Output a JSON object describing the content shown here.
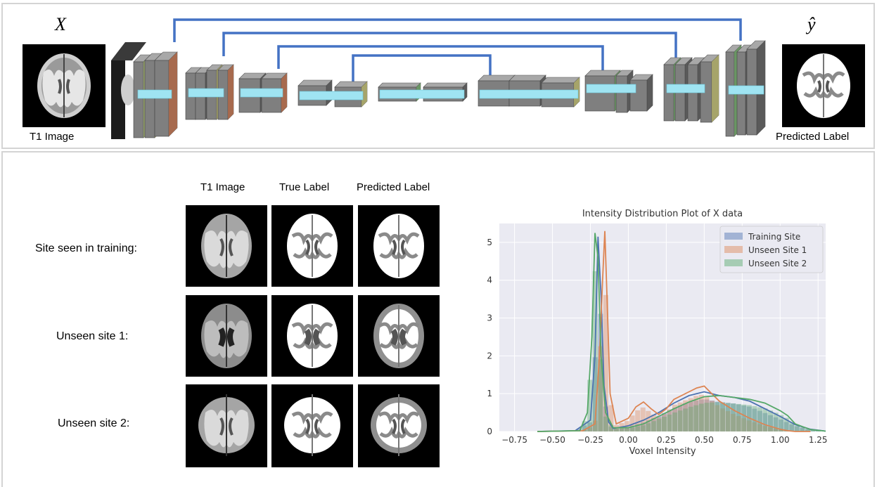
{
  "top": {
    "input_symbol": "X",
    "output_symbol": "ŷ",
    "input_caption": "T1 Image",
    "output_caption": "Predicted Label"
  },
  "grid": {
    "columns": [
      "T1 Image",
      "True Label",
      "Predicted Label"
    ],
    "rows": [
      "Site seen in training:",
      "Unseen site 1:",
      "Unseen site 2:"
    ]
  },
  "colors": {
    "skip_connection": "#4472c4",
    "block_gray": "#7f7f7f",
    "feature_cyan": "#9fe4f2",
    "training_site": "#4c72b0",
    "unseen_site_1": "#dd8452",
    "unseen_site_2": "#55a868",
    "plot_bg": "#eaeaf2"
  },
  "icons": [
    "brain-mri-icon",
    "brain-label-icon"
  ],
  "chart_data": {
    "type": "histogram",
    "title": "Intensity Distribution Plot of X data",
    "xlabel": "Voxel Intensity",
    "ylabel": "",
    "xlim": [
      -0.85,
      1.3
    ],
    "ylim": [
      0,
      5.5
    ],
    "x_ticks": [
      "−0.75",
      "−0.50",
      "−0.25",
      "0.00",
      "0.25",
      "0.50",
      "0.75",
      "1.00",
      "1.25"
    ],
    "y_ticks": [
      "0",
      "1",
      "2",
      "3",
      "4",
      "5"
    ],
    "grid": true,
    "legend_position": "top-right",
    "series": [
      {
        "name": "Training Site",
        "kde_x": [
          -0.6,
          -0.35,
          -0.25,
          -0.22,
          -0.2,
          -0.18,
          -0.16,
          -0.13,
          -0.1,
          0.0,
          0.1,
          0.2,
          0.3,
          0.4,
          0.5,
          0.6,
          0.7,
          0.8,
          0.9,
          1.0,
          1.1,
          1.2,
          1.3
        ],
        "kde_y": [
          0.0,
          0.02,
          0.3,
          2.0,
          5.15,
          3.6,
          1.2,
          0.25,
          0.08,
          0.15,
          0.3,
          0.5,
          0.75,
          0.95,
          1.05,
          0.95,
          0.9,
          0.8,
          0.6,
          0.4,
          0.18,
          0.06,
          0.01
        ]
      },
      {
        "name": "Unseen Site 1",
        "kde_x": [
          -0.6,
          -0.3,
          -0.22,
          -0.19,
          -0.17,
          -0.155,
          -0.14,
          -0.12,
          -0.08,
          0.0,
          0.05,
          0.1,
          0.15,
          0.2,
          0.25,
          0.3,
          0.4,
          0.45,
          0.5,
          0.55,
          0.6,
          0.7,
          0.8,
          0.9,
          1.0,
          1.05,
          1.1,
          1.2
        ],
        "kde_y": [
          0.0,
          0.02,
          0.2,
          2.0,
          4.0,
          5.3,
          3.5,
          1.0,
          0.2,
          0.35,
          0.65,
          0.78,
          0.6,
          0.45,
          0.6,
          0.85,
          1.05,
          1.15,
          1.2,
          1.0,
          0.8,
          0.55,
          0.35,
          0.18,
          0.06,
          0.02,
          0.0,
          0.0
        ]
      },
      {
        "name": "Unseen Site 2",
        "kde_x": [
          -0.6,
          -0.32,
          -0.27,
          -0.24,
          -0.22,
          -0.2,
          -0.18,
          -0.15,
          -0.1,
          0.0,
          0.1,
          0.2,
          0.3,
          0.4,
          0.5,
          0.6,
          0.7,
          0.8,
          0.9,
          1.0,
          1.05,
          1.1,
          1.2,
          1.3
        ],
        "kde_y": [
          0.0,
          0.02,
          0.5,
          2.5,
          5.25,
          4.6,
          2.0,
          0.5,
          0.1,
          0.1,
          0.2,
          0.4,
          0.6,
          0.78,
          0.92,
          0.95,
          0.9,
          0.85,
          0.75,
          0.55,
          0.42,
          0.2,
          0.05,
          0.01
        ]
      }
    ]
  }
}
